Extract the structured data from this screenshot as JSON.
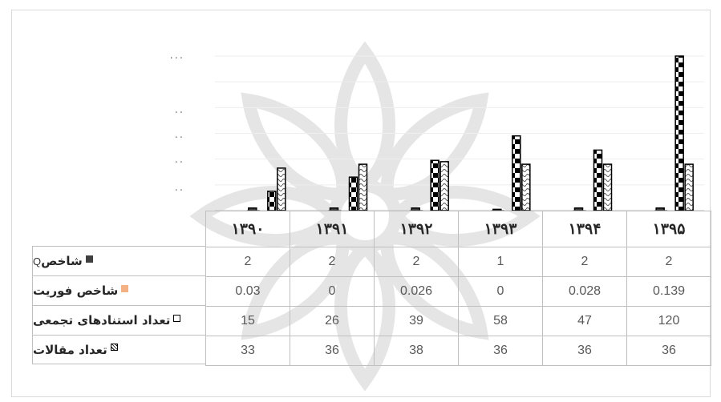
{
  "chart_data": {
    "type": "bar",
    "categories": [
      "۱۳۹۰",
      "۱۳۹۱",
      "۱۳۹۲",
      "۱۳۹۳",
      "۱۳۹۴",
      "۱۳۹۵"
    ],
    "series": [
      {
        "name": "شاخص",
        "name_suffix": "Q",
        "legend_color": "#404040",
        "values": [
          2,
          2,
          2,
          1,
          2,
          2
        ],
        "display": [
          "2",
          "2",
          "2",
          "1",
          "2",
          "2"
        ]
      },
      {
        "name": "شاخص فوریت",
        "legend_color": "#f4b183",
        "values": [
          0.03,
          0,
          0.026,
          0,
          0.028,
          0.139
        ],
        "display": [
          "0.03",
          "0",
          "0.026",
          "0",
          "0.028",
          "0.139"
        ]
      },
      {
        "name": "تعداد استنادهای تجمعی",
        "legend_color": "#ffffff",
        "values": [
          15,
          26,
          39,
          58,
          47,
          120
        ],
        "display": [
          "15",
          "26",
          "39",
          "58",
          "47",
          "120"
        ]
      },
      {
        "name": "تعداد مقالات",
        "legend_color": "#ffffff",
        "values": [
          33,
          36,
          38,
          36,
          36,
          36
        ],
        "display": [
          "33",
          "36",
          "38",
          "36",
          "36",
          "36"
        ]
      }
    ],
    "yticks_visible": [
      "..",
      "..",
      "..",
      "..",
      "..."
    ],
    "ylim": [
      0,
      120
    ],
    "grid": true,
    "legend": "table-left"
  }
}
